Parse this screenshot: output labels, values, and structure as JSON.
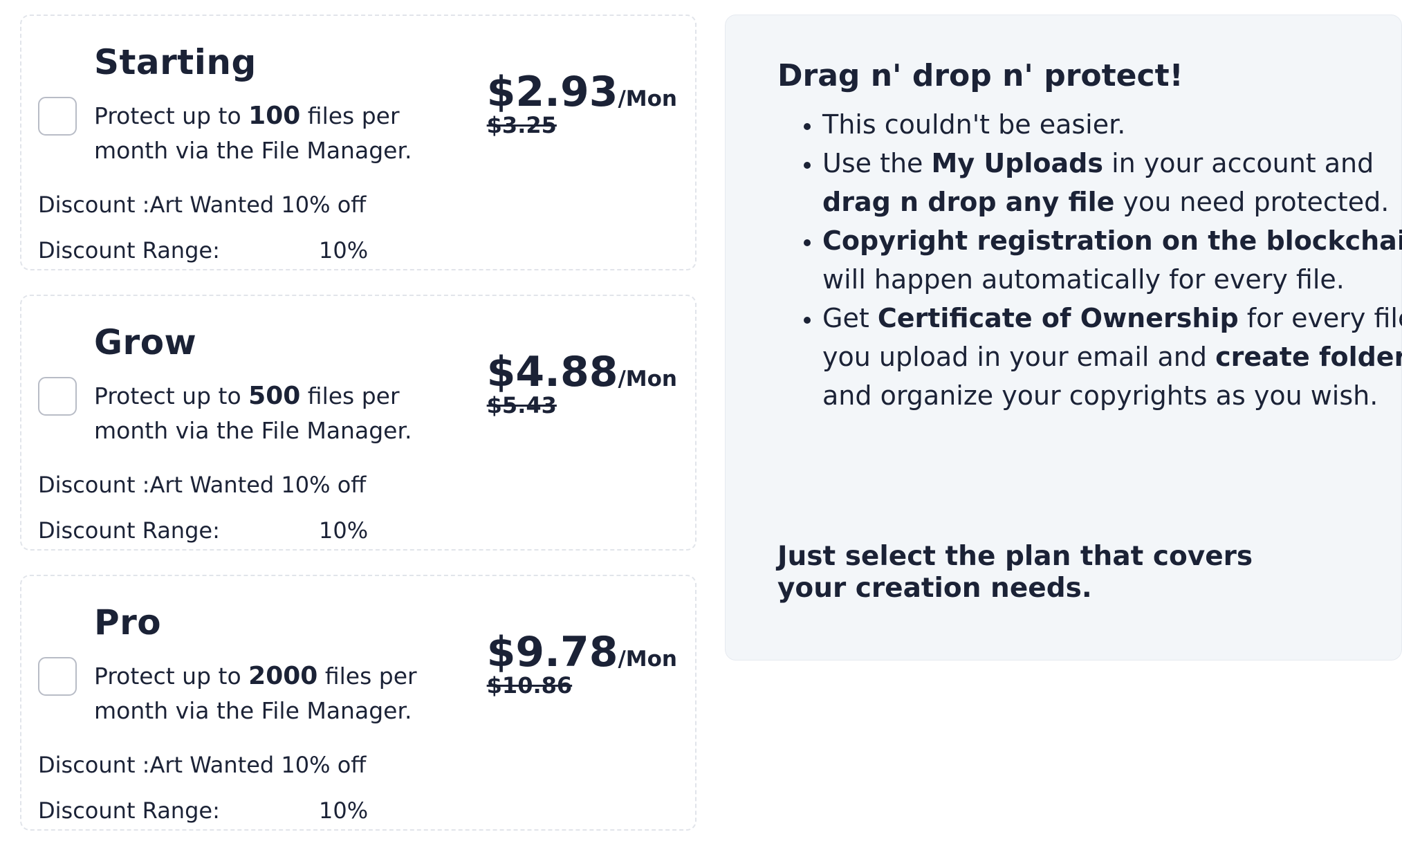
{
  "plans": [
    {
      "name": "Starting",
      "desc_prefix": "Protect up to ",
      "files": "100",
      "desc_suffix": " files per month via the File Manager.",
      "price": "$2.93",
      "unit": "/Mon",
      "old_price": "$3.25",
      "discount": "Discount :Art Wanted 10% off",
      "range_label": "Discount Range:",
      "range_value": "10%"
    },
    {
      "name": "Grow",
      "desc_prefix": "Protect up to ",
      "files": "500",
      "desc_suffix": " files per month via the File Manager.",
      "price": "$4.88",
      "unit": "/Mon",
      "old_price": "$5.43",
      "discount": "Discount :Art Wanted 10% off",
      "range_label": "Discount Range:",
      "range_value": "10%"
    },
    {
      "name": "Pro",
      "desc_prefix": "Protect up to ",
      "files": "2000",
      "desc_suffix": " files per month via the File Manager.",
      "price": "$9.78",
      "unit": "/Mon",
      "old_price": "$10.86",
      "discount": "Discount :Art Wanted 10% off",
      "range_label": "Discount Range:",
      "range_value": "10%"
    }
  ],
  "info": {
    "title": "Drag n' drop n' protect!",
    "items": [
      {
        "parts": [
          {
            "text": "This couldn't be easier.",
            "bold": false
          }
        ]
      },
      {
        "parts": [
          {
            "text": "Use the ",
            "bold": false
          },
          {
            "text": "My Uploads",
            "bold": true
          },
          {
            "text": " in your account and ",
            "bold": false
          },
          {
            "text": "drag n drop any file",
            "bold": true
          },
          {
            "text": " you need protected.",
            "bold": false
          }
        ]
      },
      {
        "parts": [
          {
            "text": "Copyright registration on the blockchain",
            "bold": true
          },
          {
            "text": " will happen automatically for every file.",
            "bold": false
          }
        ]
      },
      {
        "parts": [
          {
            "text": "Get ",
            "bold": false
          },
          {
            "text": "Certificate of Ownership",
            "bold": true
          },
          {
            "text": " for every file you upload in your email and ",
            "bold": false
          },
          {
            "text": "create folders",
            "bold": true
          },
          {
            "text": " and organize your copyrights as you wish.",
            "bold": false
          }
        ]
      }
    ],
    "footer": "Just select the plan that covers your creation needs."
  },
  "colors": {
    "text": "#1b2236",
    "panel_bg": "#f3f6f9",
    "card_border": "#e1e4ea",
    "checkbox_border": "#b8bcc6"
  }
}
